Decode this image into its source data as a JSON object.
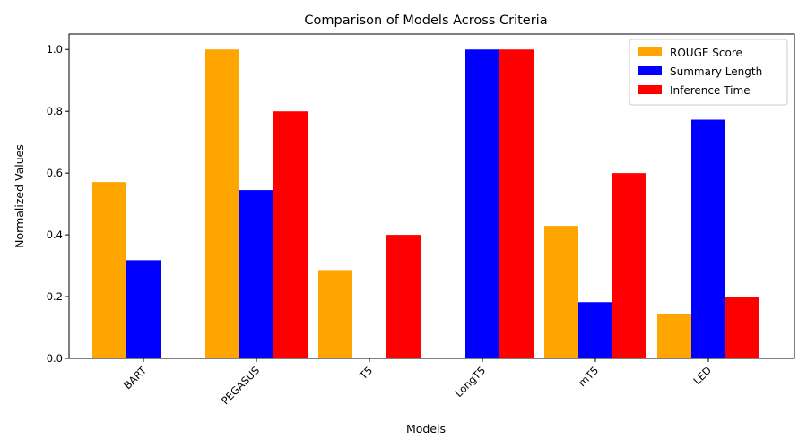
{
  "chart_data": {
    "type": "bar",
    "title": "Comparison of Models Across Criteria",
    "xlabel": "Models",
    "ylabel": "Normalized Values",
    "categories": [
      "BART",
      "PEGASUS",
      "T5",
      "LongT5",
      "mT5",
      "LED"
    ],
    "series": [
      {
        "name": "ROUGE Score",
        "color": "#ffa500",
        "values": [
          0.571,
          1.0,
          0.286,
          0.0,
          0.429,
          0.143
        ]
      },
      {
        "name": "Summary Length",
        "color": "#0000ff",
        "values": [
          0.318,
          0.545,
          0.0,
          1.0,
          0.182,
          0.773
        ]
      },
      {
        "name": "Inference Time",
        "color": "#ff0000",
        "values": [
          0.0,
          0.8,
          0.4,
          1.0,
          0.6,
          0.2
        ]
      }
    ],
    "ylim": [
      0,
      1.05
    ],
    "yticks": [
      0.0,
      0.2,
      0.4,
      0.6,
      0.8,
      1.0
    ],
    "ytick_labels": [
      "0.0",
      "0.2",
      "0.4",
      "0.6",
      "0.8",
      "1.0"
    ],
    "grid": false,
    "legend_position": "top-right"
  }
}
